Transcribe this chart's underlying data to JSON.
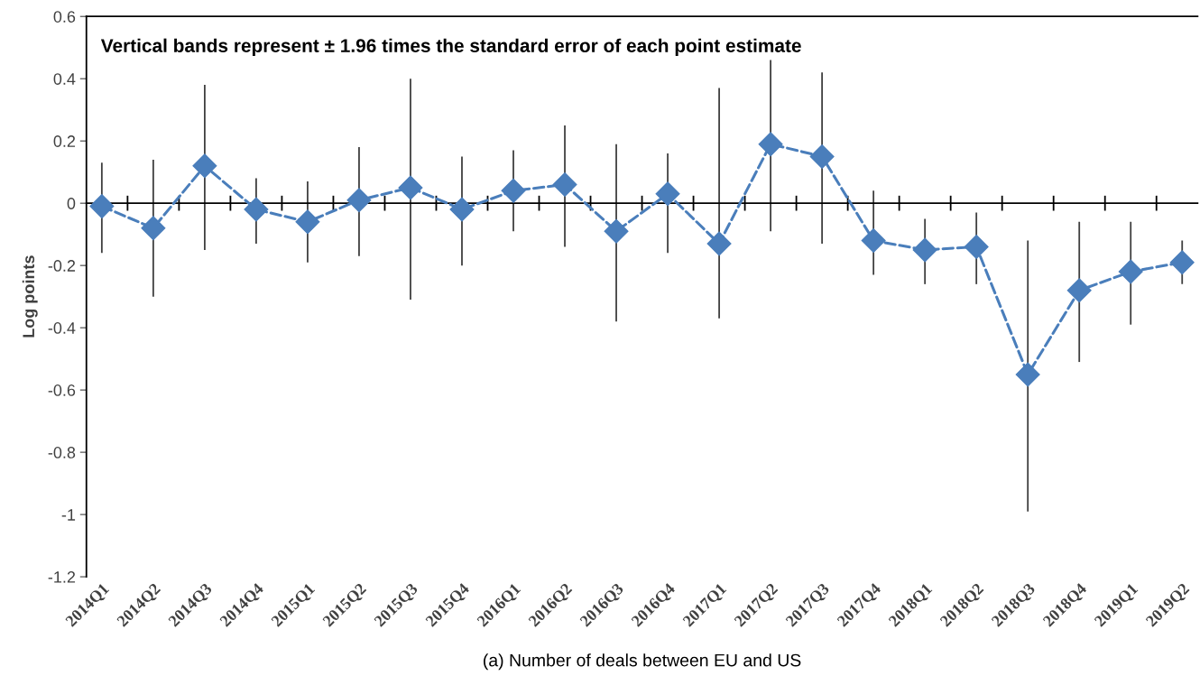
{
  "chart_data": {
    "type": "line",
    "title": "Vertical bands represent ± 1.96 times the standard error of each point estimate",
    "xlabel": "(a) Number of deals between EU and US",
    "ylabel": "Log points",
    "categories": [
      "2014Q1",
      "2014Q2",
      "2014Q3",
      "2014Q4",
      "2015Q1",
      "2015Q2",
      "2015Q3",
      "2015Q4",
      "2016Q1",
      "2016Q2",
      "2016Q3",
      "2016Q4",
      "2017Q1",
      "2017Q2",
      "2017Q3",
      "2017Q4",
      "2018Q1",
      "2018Q2",
      "2018Q3",
      "2018Q4",
      "2019Q1",
      "2019Q2"
    ],
    "series": [
      {
        "color": "#4a7ebb",
        "values": [
          -0.01,
          -0.08,
          0.12,
          -0.02,
          -0.06,
          0.01,
          0.05,
          -0.02,
          0.04,
          0.06,
          -0.09,
          0.03,
          -0.13,
          0.19,
          0.15,
          -0.12,
          -0.15,
          -0.14,
          -0.55,
          -0.28,
          -0.22,
          -0.19
        ],
        "errors": [
          [
            -0.16,
            0.13
          ],
          [
            -0.3,
            0.14
          ],
          [
            -0.15,
            0.38
          ],
          [
            -0.13,
            0.08
          ],
          [
            -0.19,
            0.07
          ],
          [
            -0.17,
            0.18
          ],
          [
            -0.31,
            0.4
          ],
          [
            -0.2,
            0.15
          ],
          [
            -0.09,
            0.17
          ],
          [
            -0.14,
            0.25
          ],
          [
            -0.38,
            0.19
          ],
          [
            -0.16,
            0.16
          ],
          [
            -0.37,
            0.37
          ],
          [
            -0.09,
            0.46
          ],
          [
            -0.13,
            0.42
          ],
          [
            -0.23,
            0.04
          ],
          [
            -0.26,
            -0.05
          ],
          [
            -0.26,
            -0.03
          ],
          [
            -0.99,
            -0.12
          ],
          [
            -0.51,
            -0.06
          ],
          [
            -0.39,
            -0.06
          ],
          [
            -0.26,
            -0.12
          ]
        ]
      }
    ],
    "ylim": [
      -1.2,
      0.6
    ],
    "yticks": [
      -1.2,
      -1,
      -0.8,
      -0.6,
      -0.4,
      -0.2,
      0,
      0.2,
      0.4,
      0.6
    ],
    "marker": "diamond",
    "line_style": "dashed"
  }
}
